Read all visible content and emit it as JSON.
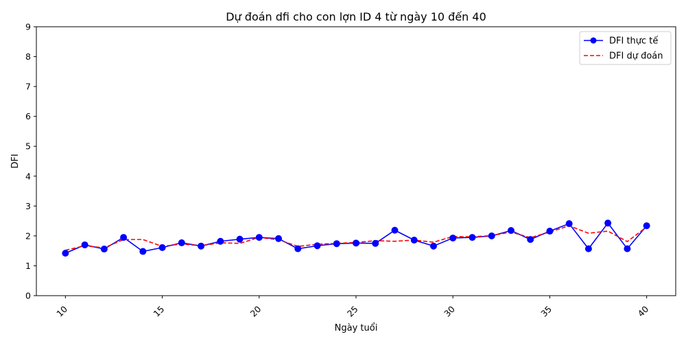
{
  "chart_data": {
    "type": "line",
    "title": "Dự đoán dfi cho con lợn ID 4 từ ngày 10 đến 40",
    "xlabel": "Ngày tuổi",
    "ylabel": "DFI",
    "xlim": [
      8.5,
      41.5
    ],
    "ylim": [
      0,
      9
    ],
    "xticks": [
      10,
      15,
      20,
      25,
      30,
      35,
      40
    ],
    "yticks": [
      0,
      1,
      2,
      3,
      4,
      5,
      6,
      7,
      8,
      9
    ],
    "grid": false,
    "legend": "top-right",
    "x": [
      10,
      11,
      12,
      13,
      14,
      15,
      16,
      17,
      18,
      19,
      20,
      21,
      22,
      23,
      24,
      25,
      26,
      27,
      28,
      29,
      30,
      31,
      32,
      33,
      34,
      35,
      36,
      37,
      38,
      39,
      40
    ],
    "series": [
      {
        "name": "DFI thực tế",
        "color": "#0000ff",
        "style": "solid-marker",
        "values": [
          1.42,
          1.7,
          1.56,
          1.95,
          1.48,
          1.61,
          1.77,
          1.66,
          1.82,
          1.89,
          1.95,
          1.91,
          1.57,
          1.67,
          1.74,
          1.76,
          1.75,
          2.19,
          1.86,
          1.66,
          1.93,
          1.95,
          2.0,
          2.18,
          1.88,
          2.16,
          2.41,
          1.57,
          2.43,
          1.57,
          2.34
        ]
      },
      {
        "name": "DFI dự đoán",
        "color": "#ff0000",
        "style": "dashed",
        "values": [
          1.52,
          1.67,
          1.6,
          1.88,
          1.88,
          1.65,
          1.73,
          1.67,
          1.77,
          1.75,
          1.95,
          1.87,
          1.65,
          1.72,
          1.75,
          1.78,
          1.84,
          1.82,
          1.86,
          1.79,
          1.98,
          1.97,
          2.01,
          2.13,
          1.94,
          2.13,
          2.34,
          2.09,
          2.16,
          1.81,
          2.3
        ]
      }
    ]
  }
}
